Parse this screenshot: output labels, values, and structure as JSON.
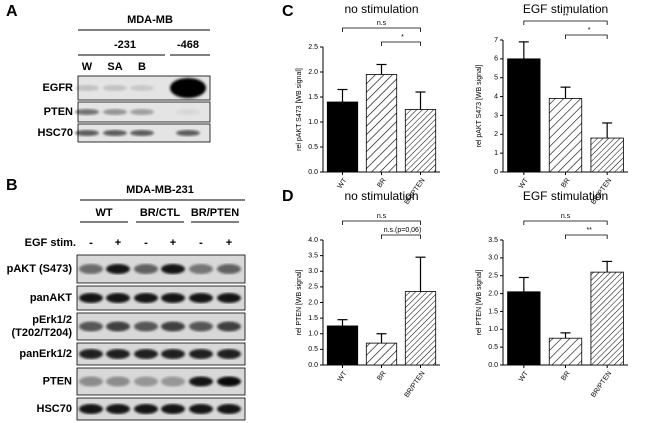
{
  "panel_a": {
    "label": "A",
    "title": "MDA-MB",
    "lines": [
      "-231",
      "-468"
    ],
    "lanes": [
      "W",
      "SA",
      "B"
    ],
    "rows": [
      "EGFR",
      "PTEN",
      "HSC70"
    ]
  },
  "panel_b": {
    "label": "B",
    "title": "MDA-MB-231",
    "groups": [
      "WT",
      "BR/CTL",
      "BR/PTEN"
    ],
    "stim_label": "EGF stim.",
    "stim": [
      "-",
      "+",
      "-",
      "+",
      "-",
      "+"
    ],
    "rows": [
      [
        "pAKT (S473)"
      ],
      [
        "panAKT"
      ],
      [
        "pErk1/2",
        "(T202/T204)"
      ],
      [
        "panErk1/2"
      ],
      [
        "PTEN"
      ],
      [
        "HSC70"
      ]
    ]
  },
  "panel_labels": {
    "c": "C",
    "d": "D"
  },
  "chart_data": [
    {
      "type": "bar",
      "title": "no stimulation",
      "y_label": "rel pAKT S473 [WB signal]",
      "categories": [
        "WT",
        "BR",
        "BR/PTEN"
      ],
      "values": [
        1.4,
        1.95,
        1.25
      ],
      "errors": [
        0.25,
        0.2,
        0.35
      ],
      "fills": [
        "solid",
        "hatch",
        "hatch-dense"
      ],
      "ylim": [
        0,
        2.5
      ],
      "yticks": [
        {
          "value": 0,
          "label": "0.0"
        },
        {
          "value": 0.5,
          "label": "0.5"
        },
        {
          "value": 1,
          "label": "1.0"
        },
        {
          "value": 1.5,
          "label": "1.5"
        },
        {
          "value": 2,
          "label": "2.0"
        },
        {
          "value": 2.5,
          "label": "2.5"
        }
      ],
      "annotations": [
        "n.s",
        "*"
      ]
    },
    {
      "type": "bar",
      "title": "EGF stimulation",
      "y_label": "rel pAKT S473 [WB signal]",
      "categories": [
        "WT",
        "BR",
        "BR/PTEN"
      ],
      "values": [
        6.0,
        3.9,
        1.8
      ],
      "errors": [
        0.9,
        0.6,
        0.8
      ],
      "fills": [
        "solid",
        "hatch",
        "hatch-dense"
      ],
      "ylim": [
        0,
        7
      ],
      "yticks": [
        0,
        1,
        2,
        3,
        4,
        5,
        6,
        7
      ],
      "annotations": [
        "**",
        "*"
      ]
    },
    {
      "type": "bar",
      "title": "no stimulation",
      "y_label": "rel PTEN [WB signal]",
      "categories": [
        "WT",
        "BR",
        "BR/PTEN"
      ],
      "values": [
        1.25,
        0.7,
        2.35
      ],
      "errors": [
        0.2,
        0.3,
        1.1
      ],
      "fills": [
        "solid",
        "hatch",
        "hatch-dense"
      ],
      "ylim": [
        0,
        4
      ],
      "yticks": [
        {
          "value": 0,
          "label": "0.0"
        },
        {
          "value": 0.5,
          "label": "0.5"
        },
        {
          "value": 1,
          "label": "1.0"
        },
        {
          "value": 1.5,
          "label": "1.5"
        },
        {
          "value": 2,
          "label": "2.0"
        },
        {
          "value": 2.5,
          "label": "2.5"
        },
        {
          "value": 3,
          "label": "3.0"
        },
        {
          "value": 3.5,
          "label": "3.5"
        },
        {
          "value": 4,
          "label": "4.0"
        }
      ],
      "annotations": [
        "n.s",
        "n.s.(p=0,06)"
      ]
    },
    {
      "type": "bar",
      "title": "EGF stimulation",
      "y_label": "rel PTEN [WB signal]",
      "categories": [
        "WT",
        "BR",
        "BR/PTEN"
      ],
      "values": [
        2.05,
        0.75,
        2.6
      ],
      "errors": [
        0.4,
        0.15,
        0.3
      ],
      "fills": [
        "solid",
        "hatch",
        "hatch-dense"
      ],
      "ylim": [
        0,
        3.5
      ],
      "yticks": [
        {
          "value": 0,
          "label": "0.0"
        },
        {
          "value": 0.5,
          "label": "0.5"
        },
        {
          "value": 1,
          "label": "1.0"
        },
        {
          "value": 1.5,
          "label": "1.5"
        },
        {
          "value": 2,
          "label": "2.0"
        },
        {
          "value": 2.5,
          "label": "2.5"
        },
        {
          "value": 3,
          "label": "3.0"
        },
        {
          "value": 3.5,
          "label": "3.5"
        }
      ],
      "annotations": [
        "n.s",
        "**"
      ]
    }
  ]
}
